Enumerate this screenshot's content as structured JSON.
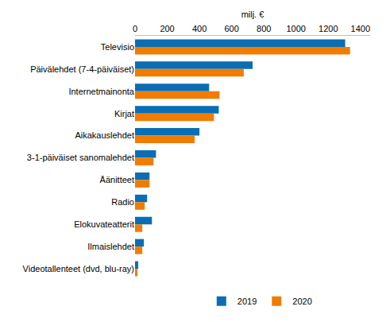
{
  "chart_data": {
    "type": "bar",
    "orientation": "horizontal",
    "x_label": "milj. €",
    "categories": [
      "Televisio",
      "Päivälehdet (7-4-päiväiset)",
      "Internetmainonta",
      "Kirjat",
      "Aikakauslehdet",
      "3-1-päiväiset sanomalehdet",
      "Äänitteet",
      "Radio",
      "Elokuvateatterit",
      "Ilmaislehdet",
      "Videotallenteet (dvd, blu-ray)"
    ],
    "series": [
      {
        "name": "2019",
        "color": "#0a6eb4",
        "values": [
          1305,
          730,
          460,
          520,
          400,
          130,
          90,
          75,
          105,
          55,
          20
        ]
      },
      {
        "name": "2020",
        "color": "#f07c00",
        "values": [
          1335,
          675,
          525,
          490,
          370,
          115,
          90,
          60,
          45,
          45,
          15
        ]
      }
    ],
    "xlim": [
      0,
      1460
    ],
    "xticks": [
      0,
      200,
      400,
      600,
      800,
      1000,
      1200,
      1400
    ],
    "grid": false,
    "legend": "bottom"
  }
}
